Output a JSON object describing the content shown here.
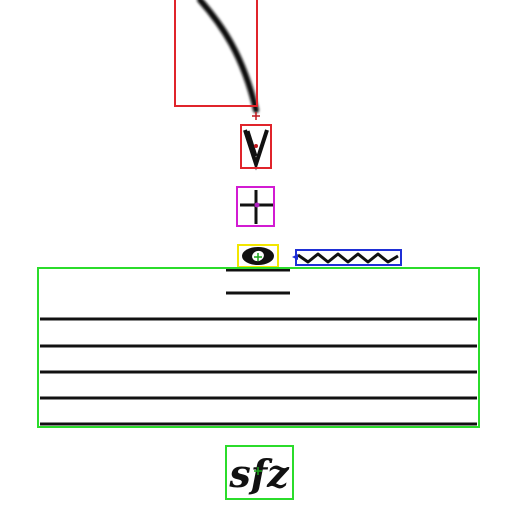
{
  "colors": {
    "background": "#ffffff",
    "ink": "#111111",
    "box_slur": "#e0242b",
    "box_accent": "#e0242b",
    "box_fermata_cross": "#d21bd2",
    "box_notehead": "#f2e600",
    "box_trill": "#1f2fd6",
    "box_staff": "#2bdc2b",
    "box_dynamic": "#2bdc2b",
    "marker_red": "#c0181e",
    "marker_magenta": "#b020c0",
    "marker_green": "#1aa51a",
    "marker_blue": "#1f2fd6"
  },
  "annotations": [
    {
      "id": "slur",
      "label": "",
      "color_key": "box_slur",
      "icon": "slur-curve"
    },
    {
      "id": "accent",
      "label": "",
      "color_key": "box_accent",
      "icon": "accent-v"
    },
    {
      "id": "cross",
      "label": "",
      "color_key": "box_fermata_cross",
      "icon": "cross"
    },
    {
      "id": "notehead",
      "label": "",
      "color_key": "box_notehead",
      "icon": "whole-note"
    },
    {
      "id": "trill",
      "label": "",
      "color_key": "box_trill",
      "icon": "trill-wave"
    },
    {
      "id": "staff",
      "label": "",
      "color_key": "box_staff",
      "icon": "staff-lines"
    },
    {
      "id": "dynamic",
      "label": "sfz",
      "color_key": "box_dynamic",
      "icon": "dynamic-text"
    }
  ],
  "dynamic_text": "sfz"
}
